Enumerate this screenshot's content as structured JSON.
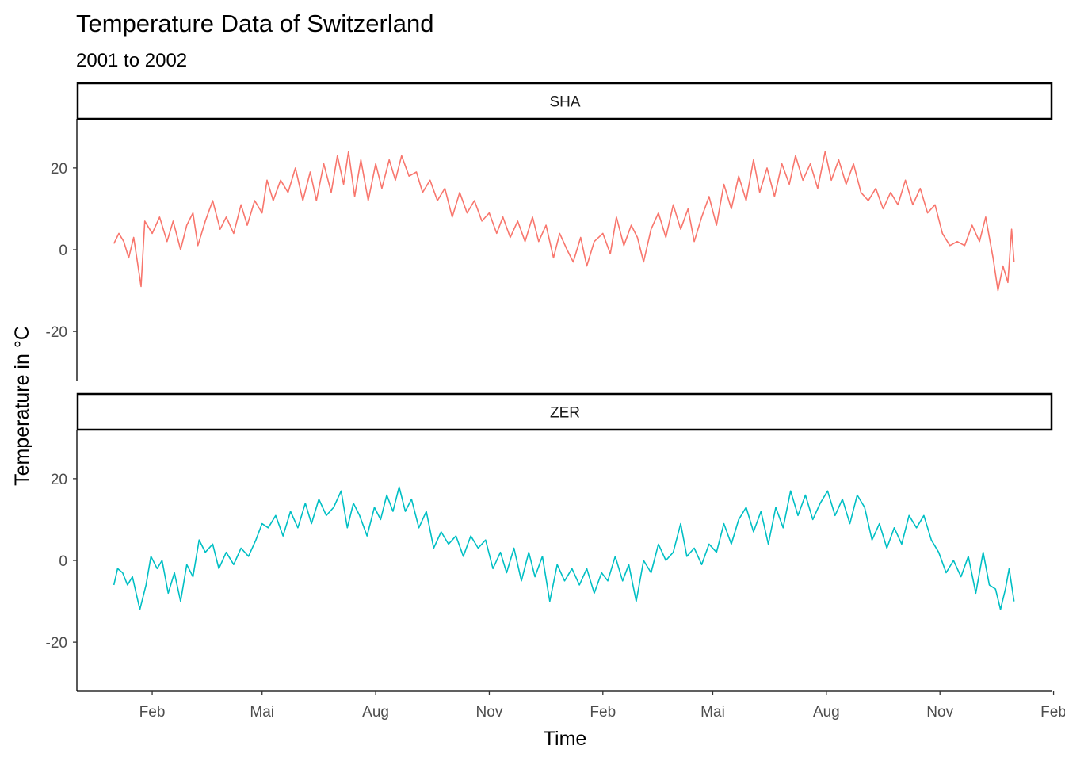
{
  "chart_data": {
    "type": "line",
    "title": "Temperature Data of Switzerland",
    "subtitle": "2001 to 2002",
    "xlabel": "Time",
    "ylabel": "Temperature in °C",
    "ylim": [
      -32,
      32
    ],
    "xlim": [
      "2000-12-02",
      "2003-01-31"
    ],
    "grid": false,
    "legend": "none",
    "y_ticks": [
      -20,
      0,
      20
    ],
    "x_ticks": [
      {
        "date": "2001-02-01",
        "label": "Feb"
      },
      {
        "date": "2001-05-01",
        "label": "Mai"
      },
      {
        "date": "2001-08-01",
        "label": "Aug"
      },
      {
        "date": "2001-11-01",
        "label": "Nov"
      },
      {
        "date": "2002-02-01",
        "label": "Feb"
      },
      {
        "date": "2002-05-01",
        "label": "Mai"
      },
      {
        "date": "2002-08-01",
        "label": "Aug"
      },
      {
        "date": "2002-11-01",
        "label": "Nov"
      },
      {
        "date": "2003-02-01",
        "label": "Feb"
      }
    ],
    "panels": [
      {
        "strip": "SHA",
        "color": "#F8766D",
        "points": [
          [
            "2001-01-01",
            1.5
          ],
          [
            "2001-01-05",
            4
          ],
          [
            "2001-01-09",
            2
          ],
          [
            "2001-01-13",
            -2
          ],
          [
            "2001-01-17",
            3
          ],
          [
            "2001-01-20",
            -3
          ],
          [
            "2001-01-23",
            -9
          ],
          [
            "2001-01-26",
            7
          ],
          [
            "2001-02-01",
            4
          ],
          [
            "2001-02-07",
            8
          ],
          [
            "2001-02-13",
            2
          ],
          [
            "2001-02-18",
            7
          ],
          [
            "2001-02-24",
            0
          ],
          [
            "2001-03-01",
            6
          ],
          [
            "2001-03-06",
            9
          ],
          [
            "2001-03-10",
            1
          ],
          [
            "2001-03-16",
            7
          ],
          [
            "2001-03-22",
            12
          ],
          [
            "2001-03-28",
            5
          ],
          [
            "2001-04-02",
            8
          ],
          [
            "2001-04-08",
            4
          ],
          [
            "2001-04-14",
            11
          ],
          [
            "2001-04-19",
            6
          ],
          [
            "2001-04-25",
            12
          ],
          [
            "2001-05-01",
            9
          ],
          [
            "2001-05-05",
            17
          ],
          [
            "2001-05-10",
            12
          ],
          [
            "2001-05-16",
            17
          ],
          [
            "2001-05-22",
            14
          ],
          [
            "2001-05-28",
            20
          ],
          [
            "2001-06-03",
            12
          ],
          [
            "2001-06-09",
            19
          ],
          [
            "2001-06-14",
            12
          ],
          [
            "2001-06-20",
            21
          ],
          [
            "2001-06-26",
            14
          ],
          [
            "2001-07-01",
            23
          ],
          [
            "2001-07-06",
            16
          ],
          [
            "2001-07-10",
            24
          ],
          [
            "2001-07-15",
            13
          ],
          [
            "2001-07-20",
            22
          ],
          [
            "2001-07-26",
            12
          ],
          [
            "2001-08-01",
            21
          ],
          [
            "2001-08-06",
            15
          ],
          [
            "2001-08-12",
            22
          ],
          [
            "2001-08-17",
            17
          ],
          [
            "2001-08-22",
            23
          ],
          [
            "2001-08-28",
            18
          ],
          [
            "2001-09-03",
            19
          ],
          [
            "2001-09-08",
            14
          ],
          [
            "2001-09-14",
            17
          ],
          [
            "2001-09-20",
            12
          ],
          [
            "2001-09-26",
            15
          ],
          [
            "2001-10-02",
            8
          ],
          [
            "2001-10-08",
            14
          ],
          [
            "2001-10-14",
            9
          ],
          [
            "2001-10-20",
            12
          ],
          [
            "2001-10-26",
            7
          ],
          [
            "2001-11-01",
            9
          ],
          [
            "2001-11-07",
            4
          ],
          [
            "2001-11-12",
            8
          ],
          [
            "2001-11-18",
            3
          ],
          [
            "2001-11-24",
            7
          ],
          [
            "2001-11-30",
            2
          ],
          [
            "2001-12-06",
            8
          ],
          [
            "2001-12-11",
            2
          ],
          [
            "2001-12-17",
            6
          ],
          [
            "2001-12-23",
            -2
          ],
          [
            "2001-12-28",
            4
          ],
          [
            "2002-01-03",
            0
          ],
          [
            "2002-01-08",
            -3
          ],
          [
            "2002-01-14",
            3
          ],
          [
            "2002-01-19",
            -4
          ],
          [
            "2002-01-25",
            2
          ],
          [
            "2002-02-01",
            4
          ],
          [
            "2002-02-07",
            -1
          ],
          [
            "2002-02-12",
            8
          ],
          [
            "2002-02-18",
            1
          ],
          [
            "2002-02-24",
            6
          ],
          [
            "2002-03-01",
            3
          ],
          [
            "2002-03-06",
            -3
          ],
          [
            "2002-03-12",
            5
          ],
          [
            "2002-03-18",
            9
          ],
          [
            "2002-03-24",
            3
          ],
          [
            "2002-03-30",
            11
          ],
          [
            "2002-04-05",
            5
          ],
          [
            "2002-04-11",
            10
          ],
          [
            "2002-04-16",
            2
          ],
          [
            "2002-04-22",
            8
          ],
          [
            "2002-04-28",
            13
          ],
          [
            "2002-05-04",
            6
          ],
          [
            "2002-05-10",
            16
          ],
          [
            "2002-05-16",
            10
          ],
          [
            "2002-05-22",
            18
          ],
          [
            "2002-05-28",
            12
          ],
          [
            "2002-06-03",
            22
          ],
          [
            "2002-06-08",
            14
          ],
          [
            "2002-06-14",
            20
          ],
          [
            "2002-06-20",
            13
          ],
          [
            "2002-06-26",
            21
          ],
          [
            "2002-07-02",
            16
          ],
          [
            "2002-07-07",
            23
          ],
          [
            "2002-07-13",
            17
          ],
          [
            "2002-07-19",
            21
          ],
          [
            "2002-07-25",
            15
          ],
          [
            "2002-07-31",
            24
          ],
          [
            "2002-08-05",
            17
          ],
          [
            "2002-08-11",
            22
          ],
          [
            "2002-08-17",
            16
          ],
          [
            "2002-08-23",
            21
          ],
          [
            "2002-08-29",
            14
          ],
          [
            "2002-09-04",
            12
          ],
          [
            "2002-09-10",
            15
          ],
          [
            "2002-09-16",
            10
          ],
          [
            "2002-09-22",
            14
          ],
          [
            "2002-09-28",
            11
          ],
          [
            "2002-10-04",
            17
          ],
          [
            "2002-10-10",
            11
          ],
          [
            "2002-10-16",
            15
          ],
          [
            "2002-10-22",
            9
          ],
          [
            "2002-10-28",
            11
          ],
          [
            "2002-11-03",
            4
          ],
          [
            "2002-11-09",
            1
          ],
          [
            "2002-11-15",
            2
          ],
          [
            "2002-11-21",
            1
          ],
          [
            "2002-11-27",
            6
          ],
          [
            "2002-12-03",
            2
          ],
          [
            "2002-12-08",
            8
          ],
          [
            "2002-12-14",
            -2
          ],
          [
            "2002-12-18",
            -10
          ],
          [
            "2002-12-22",
            -4
          ],
          [
            "2002-12-26",
            -8
          ],
          [
            "2002-12-29",
            5
          ],
          [
            "2002-12-31",
            -3
          ]
        ]
      },
      {
        "strip": "ZER",
        "color": "#00BFC4",
        "points": [
          [
            "2001-01-01",
            -6
          ],
          [
            "2001-01-04",
            -2
          ],
          [
            "2001-01-08",
            -3
          ],
          [
            "2001-01-12",
            -6
          ],
          [
            "2001-01-16",
            -4
          ],
          [
            "2001-01-19",
            -8
          ],
          [
            "2001-01-22",
            -12
          ],
          [
            "2001-01-27",
            -6
          ],
          [
            "2001-01-31",
            1
          ],
          [
            "2001-02-05",
            -2
          ],
          [
            "2001-02-09",
            0
          ],
          [
            "2001-02-14",
            -8
          ],
          [
            "2001-02-19",
            -3
          ],
          [
            "2001-02-24",
            -10
          ],
          [
            "2001-03-01",
            -1
          ],
          [
            "2001-03-06",
            -4
          ],
          [
            "2001-03-11",
            5
          ],
          [
            "2001-03-16",
            2
          ],
          [
            "2001-03-22",
            4
          ],
          [
            "2001-03-27",
            -2
          ],
          [
            "2001-04-02",
            2
          ],
          [
            "2001-04-08",
            -1
          ],
          [
            "2001-04-14",
            3
          ],
          [
            "2001-04-20",
            1
          ],
          [
            "2001-04-26",
            5
          ],
          [
            "2001-05-01",
            9
          ],
          [
            "2001-05-06",
            8
          ],
          [
            "2001-05-12",
            11
          ],
          [
            "2001-05-18",
            6
          ],
          [
            "2001-05-24",
            12
          ],
          [
            "2001-05-30",
            8
          ],
          [
            "2001-06-05",
            14
          ],
          [
            "2001-06-10",
            9
          ],
          [
            "2001-06-16",
            15
          ],
          [
            "2001-06-22",
            11
          ],
          [
            "2001-06-28",
            13
          ],
          [
            "2001-07-04",
            17
          ],
          [
            "2001-07-09",
            8
          ],
          [
            "2001-07-14",
            14
          ],
          [
            "2001-07-19",
            11
          ],
          [
            "2001-07-25",
            6
          ],
          [
            "2001-07-31",
            13
          ],
          [
            "2001-08-05",
            10
          ],
          [
            "2001-08-10",
            16
          ],
          [
            "2001-08-15",
            12
          ],
          [
            "2001-08-20",
            18
          ],
          [
            "2001-08-25",
            12
          ],
          [
            "2001-08-30",
            15
          ],
          [
            "2001-09-05",
            8
          ],
          [
            "2001-09-11",
            12
          ],
          [
            "2001-09-17",
            3
          ],
          [
            "2001-09-23",
            7
          ],
          [
            "2001-09-29",
            4
          ],
          [
            "2001-10-05",
            6
          ],
          [
            "2001-10-11",
            1
          ],
          [
            "2001-10-17",
            6
          ],
          [
            "2001-10-23",
            3
          ],
          [
            "2001-10-29",
            5
          ],
          [
            "2001-11-04",
            -2
          ],
          [
            "2001-11-10",
            2
          ],
          [
            "2001-11-15",
            -3
          ],
          [
            "2001-11-21",
            3
          ],
          [
            "2001-11-27",
            -5
          ],
          [
            "2001-12-03",
            2
          ],
          [
            "2001-12-08",
            -4
          ],
          [
            "2001-12-14",
            1
          ],
          [
            "2001-12-20",
            -10
          ],
          [
            "2001-12-26",
            -1
          ],
          [
            "2002-01-01",
            -5
          ],
          [
            "2002-01-07",
            -2
          ],
          [
            "2002-01-13",
            -6
          ],
          [
            "2002-01-19",
            -2
          ],
          [
            "2002-01-25",
            -8
          ],
          [
            "2002-01-31",
            -3
          ],
          [
            "2002-02-05",
            -5
          ],
          [
            "2002-02-11",
            1
          ],
          [
            "2002-02-17",
            -5
          ],
          [
            "2002-02-22",
            -1
          ],
          [
            "2002-02-28",
            -10
          ],
          [
            "2002-03-06",
            0
          ],
          [
            "2002-03-12",
            -3
          ],
          [
            "2002-03-18",
            4
          ],
          [
            "2002-03-24",
            0
          ],
          [
            "2002-03-30",
            2
          ],
          [
            "2002-04-05",
            9
          ],
          [
            "2002-04-10",
            1
          ],
          [
            "2002-04-16",
            3
          ],
          [
            "2002-04-22",
            -1
          ],
          [
            "2002-04-28",
            4
          ],
          [
            "2002-05-04",
            2
          ],
          [
            "2002-05-10",
            9
          ],
          [
            "2002-05-16",
            4
          ],
          [
            "2002-05-22",
            10
          ],
          [
            "2002-05-28",
            13
          ],
          [
            "2002-06-03",
            7
          ],
          [
            "2002-06-09",
            12
          ],
          [
            "2002-06-15",
            4
          ],
          [
            "2002-06-21",
            13
          ],
          [
            "2002-06-27",
            8
          ],
          [
            "2002-07-03",
            17
          ],
          [
            "2002-07-09",
            11
          ],
          [
            "2002-07-15",
            16
          ],
          [
            "2002-07-21",
            10
          ],
          [
            "2002-07-27",
            14
          ],
          [
            "2002-08-02",
            17
          ],
          [
            "2002-08-08",
            11
          ],
          [
            "2002-08-14",
            15
          ],
          [
            "2002-08-20",
            9
          ],
          [
            "2002-08-26",
            16
          ],
          [
            "2002-09-01",
            13
          ],
          [
            "2002-09-07",
            5
          ],
          [
            "2002-09-13",
            9
          ],
          [
            "2002-09-19",
            3
          ],
          [
            "2002-09-25",
            8
          ],
          [
            "2002-10-01",
            4
          ],
          [
            "2002-10-07",
            11
          ],
          [
            "2002-10-13",
            8
          ],
          [
            "2002-10-19",
            11
          ],
          [
            "2002-10-25",
            5
          ],
          [
            "2002-10-31",
            2
          ],
          [
            "2002-11-06",
            -3
          ],
          [
            "2002-11-12",
            0
          ],
          [
            "2002-11-18",
            -4
          ],
          [
            "2002-11-24",
            1
          ],
          [
            "2002-11-30",
            -8
          ],
          [
            "2002-12-06",
            2
          ],
          [
            "2002-12-11",
            -6
          ],
          [
            "2002-12-16",
            -7
          ],
          [
            "2002-12-20",
            -12
          ],
          [
            "2002-12-24",
            -7
          ],
          [
            "2002-12-27",
            -2
          ],
          [
            "2002-12-31",
            -10
          ]
        ]
      }
    ]
  }
}
